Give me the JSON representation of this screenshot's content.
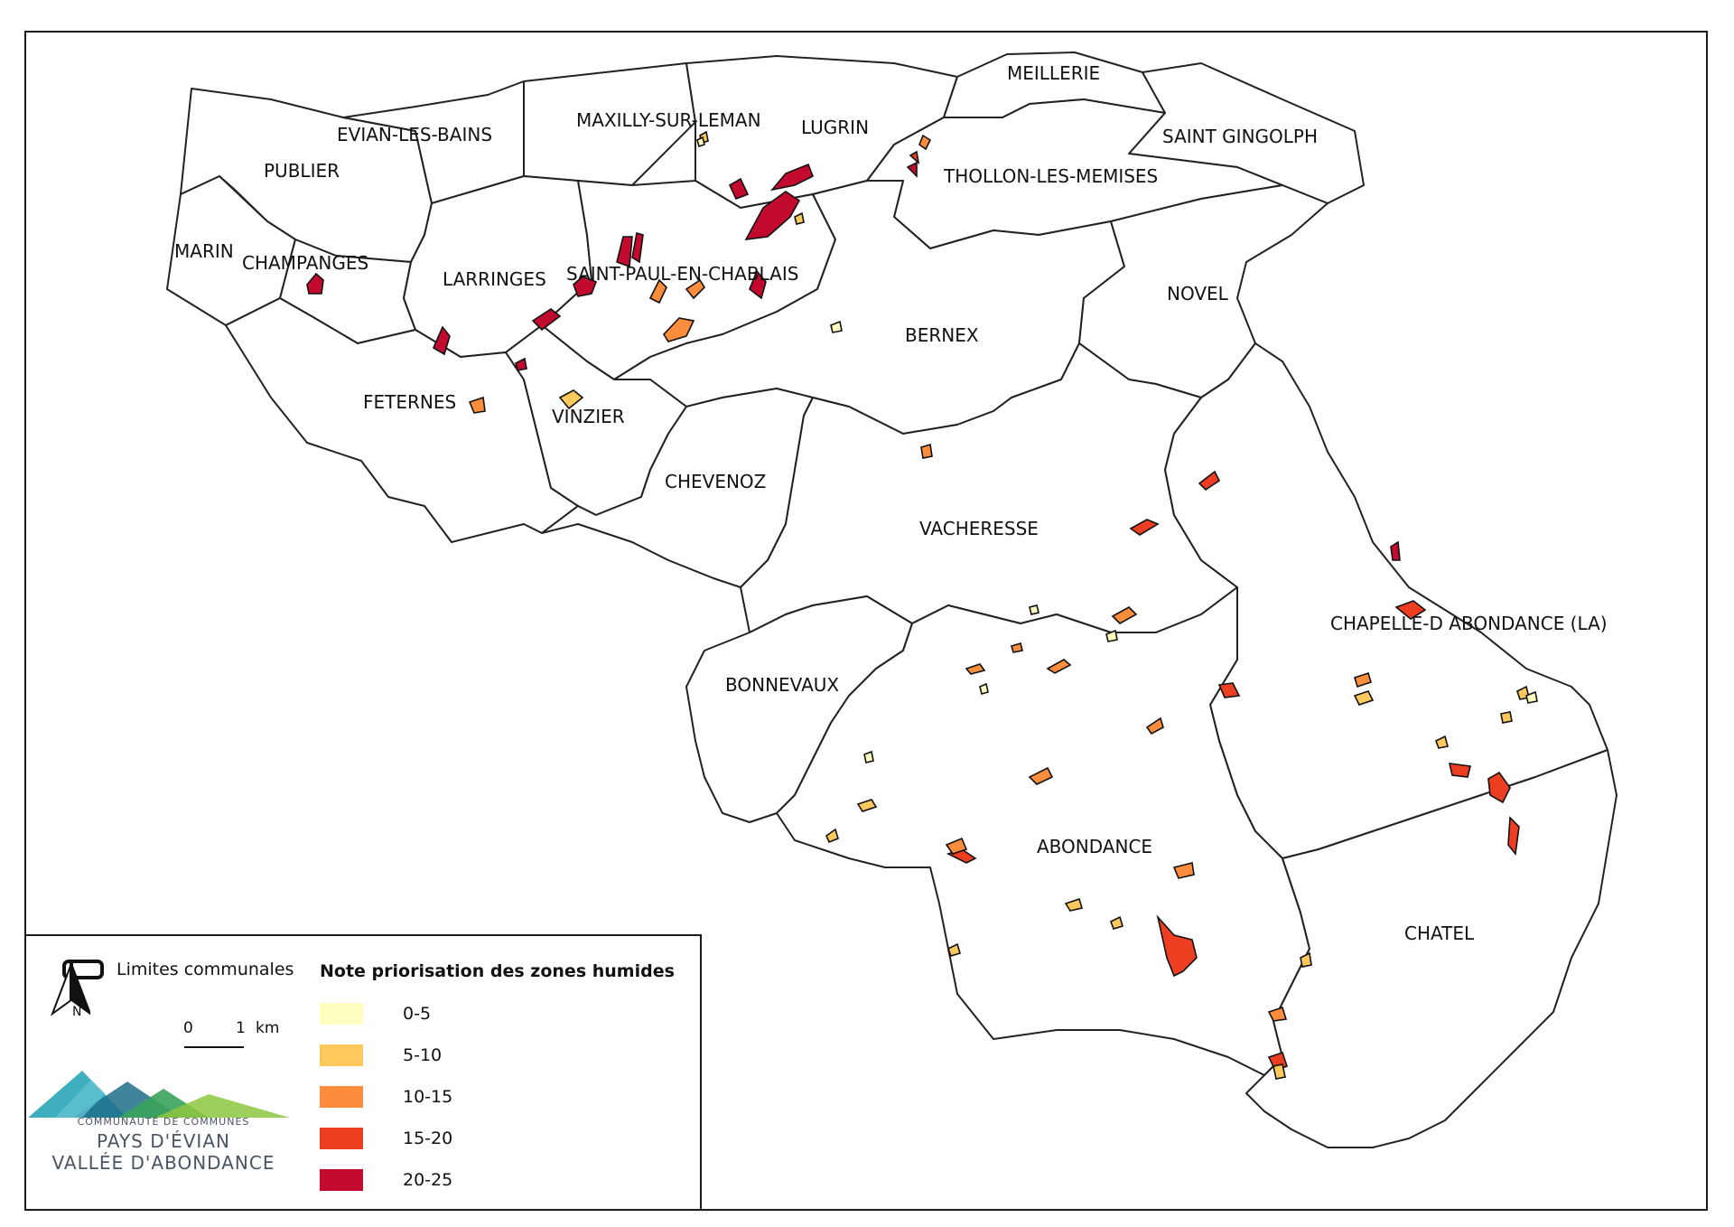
{
  "communes": [
    {
      "name": "EVIAN-LES-BAINS"
    },
    {
      "name": "MAXILLY-SUR-LEMAN"
    },
    {
      "name": "LUGRIN"
    },
    {
      "name": "MEILLERIE"
    },
    {
      "name": "SAINT GINGOLPH"
    },
    {
      "name": "PUBLIER"
    },
    {
      "name": "THOLLON-LES-MEMISES"
    },
    {
      "name": "MARIN"
    },
    {
      "name": "CHAMPANGES"
    },
    {
      "name": "LARRINGES"
    },
    {
      "name": "SAINT-PAUL-EN-CHABLAIS"
    },
    {
      "name": "NOVEL"
    },
    {
      "name": "BERNEX"
    },
    {
      "name": "FETERNES"
    },
    {
      "name": "VINZIER"
    },
    {
      "name": "CHEVENOZ"
    },
    {
      "name": "VACHERESSE"
    },
    {
      "name": "CHAPELLE-D ABONDANCE (LA)"
    },
    {
      "name": "BONNEVAUX"
    },
    {
      "name": "ABONDANCE"
    },
    {
      "name": "CHATEL"
    }
  ],
  "legend": {
    "boundary_label": "Limites communales",
    "title": "Note priorisation des zones humides",
    "classes": [
      {
        "label": "0-5",
        "color": "#ffffbf"
      },
      {
        "label": "5-10",
        "color": "#fdc95d"
      },
      {
        "label": "10-15",
        "color": "#fc8d3c"
      },
      {
        "label": "15-20",
        "color": "#ee3e22"
      },
      {
        "label": "20-25",
        "color": "#c10a2e"
      }
    ],
    "scale": {
      "zero": "0",
      "one": "1",
      "unit": "km"
    },
    "north_label": "N"
  },
  "logo": {
    "line1": "COMMUNAUTÉ DE COMMUNES",
    "line2": "PAYS D'ÉVIAN",
    "line3": "VALLÉE D'ABONDANCE",
    "colors": {
      "teal": "#2aa6b8",
      "green": "#4caf50",
      "lime": "#8dc63f",
      "navy": "#1f4e79"
    }
  }
}
